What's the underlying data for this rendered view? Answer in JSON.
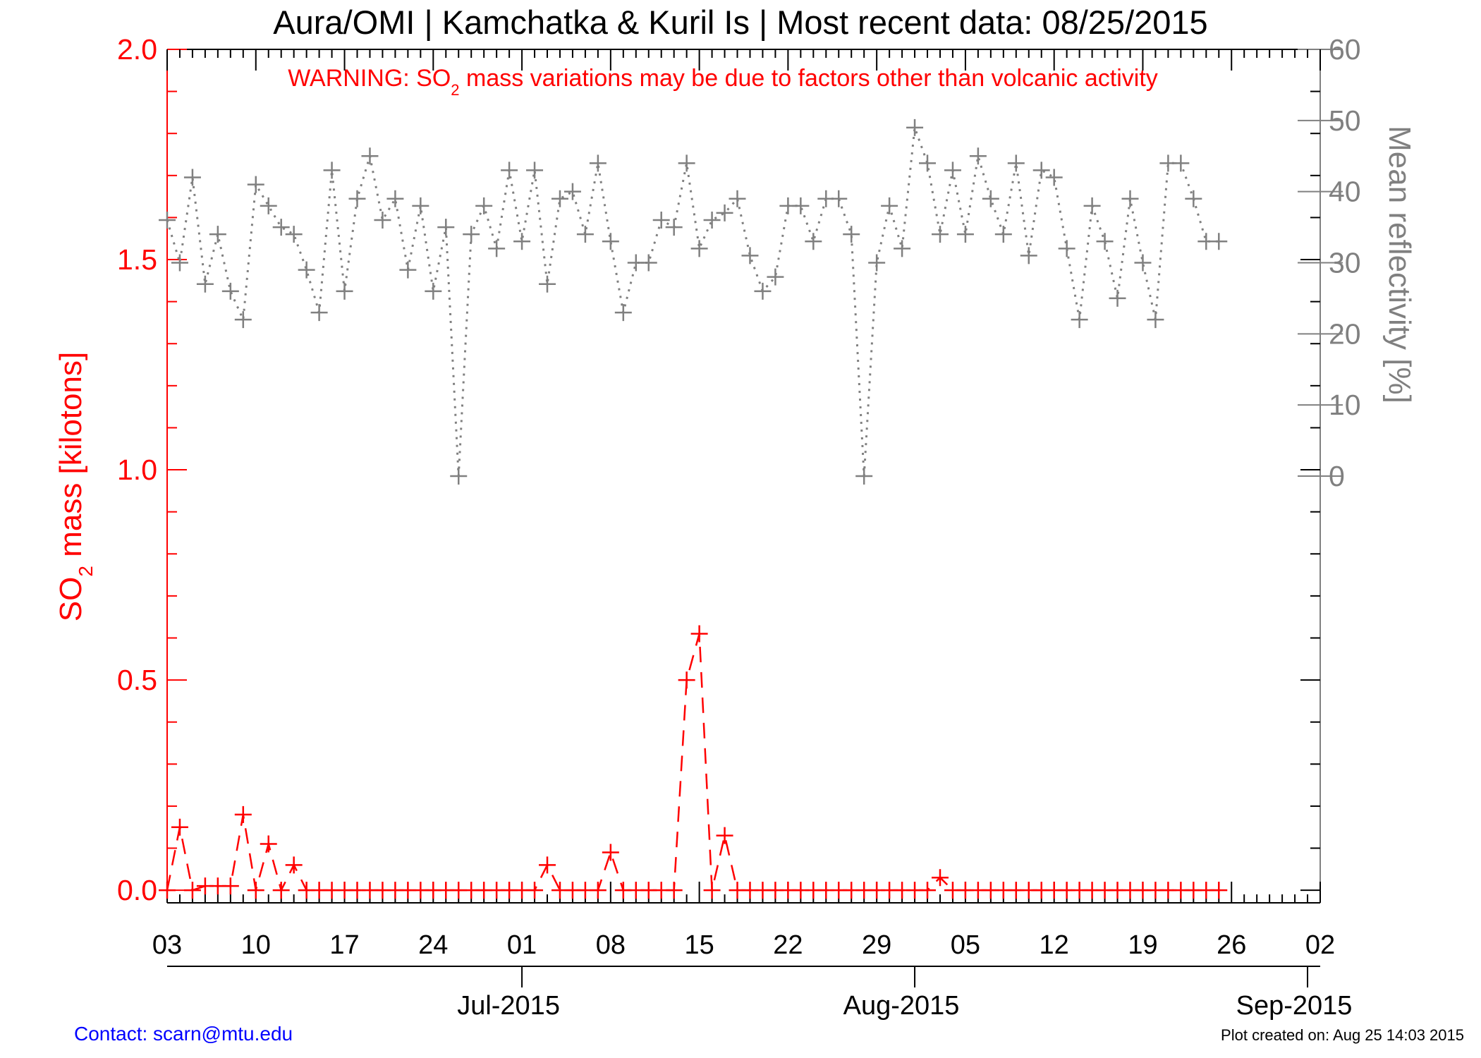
{
  "title": "Aura/OMI | Kamchatka & Kuril Is | Most recent data: 08/25/2015",
  "warning": {
    "prefix": "WARNING: SO",
    "subscript": "2",
    "suffix": " mass variations may be due to factors other than volcanic activity"
  },
  "contact": "Contact: scarn@mtu.edu",
  "plot_created": "Plot created on: Aug 25 14:03 2015",
  "colors": {
    "so2": "#ff0000",
    "reflectivity": "#808080",
    "axis": "#000000",
    "contact": "#0000ff"
  },
  "chart_data": {
    "type": "line",
    "x_start_date": "2015-06-03",
    "x_end_date": "2015-09-02",
    "x_range_days": [
      0,
      91
    ],
    "x_tick_days": [
      0,
      7,
      14,
      21,
      28,
      35,
      42,
      49,
      56,
      63,
      70,
      77,
      84,
      91
    ],
    "x_tick_labels": [
      "03",
      "10",
      "17",
      "24",
      "01",
      "08",
      "15",
      "22",
      "29",
      "05",
      "12",
      "19",
      "26",
      "02"
    ],
    "months": [
      {
        "label": "Jul-2015",
        "day": 28
      },
      {
        "label": "Aug-2015",
        "day": 59
      },
      {
        "label": "Sep-2015",
        "day": 90
      }
    ],
    "y_left": {
      "label_prefix": "SO",
      "label_subscript": "2",
      "label_suffix": " mass [kilotons]",
      "range": [
        -0.03,
        2.0
      ],
      "ticks": [
        0.0,
        0.5,
        1.0,
        1.5,
        2.0
      ],
      "tick_labels": [
        "0.0",
        "0.5",
        "1.0",
        "1.5",
        "2.0"
      ]
    },
    "y_right": {
      "label": "Mean reflectivity [%]",
      "range": [
        -60,
        60
      ],
      "ticks": [
        0,
        10,
        20,
        30,
        40,
        50,
        60
      ],
      "tick_labels": [
        "0",
        "10",
        "20",
        "30",
        "40",
        "50",
        "60"
      ]
    },
    "series": [
      {
        "name": "SO2 mass",
        "axis": "left",
        "line_style": "dashed",
        "marker": "+",
        "x": [
          0,
          1,
          2,
          3,
          4,
          5,
          6,
          7,
          8,
          9,
          10,
          11,
          12,
          13,
          14,
          15,
          16,
          17,
          18,
          19,
          20,
          21,
          22,
          23,
          24,
          25,
          26,
          27,
          28,
          29,
          30,
          31,
          32,
          33,
          34,
          35,
          36,
          37,
          38,
          39,
          40,
          41,
          42,
          43,
          44,
          45,
          46,
          47,
          48,
          49,
          50,
          51,
          52,
          53,
          54,
          55,
          56,
          57,
          58,
          59,
          60,
          61,
          62,
          63,
          64,
          65,
          66,
          67,
          68,
          69,
          70,
          71,
          72,
          73,
          74,
          75,
          76,
          77,
          78,
          79,
          80,
          81,
          82,
          83
        ],
        "y": [
          0.0,
          0.15,
          0.0,
          0.01,
          0.01,
          0.01,
          0.18,
          0.0,
          0.11,
          0.0,
          0.06,
          0.0,
          0.0,
          0.0,
          0.0,
          0.0,
          0.0,
          0.0,
          0.0,
          0.0,
          0.0,
          0.0,
          0.0,
          0.0,
          0.0,
          0.0,
          0.0,
          0.0,
          0.0,
          0.0,
          0.06,
          0.0,
          0.0,
          0.0,
          0.0,
          0.09,
          0.0,
          0.0,
          0.0,
          0.0,
          0.0,
          0.5,
          0.61,
          0.0,
          0.13,
          0.0,
          0.0,
          0.0,
          0.0,
          0.0,
          0.0,
          0.0,
          0.0,
          0.0,
          0.0,
          0.0,
          0.0,
          0.0,
          0.0,
          0.0,
          0.0,
          0.03,
          0.0,
          0.0,
          0.0,
          0.0,
          0.0,
          0.0,
          0.0,
          0.0,
          0.0,
          0.0,
          0.0,
          0.0,
          0.0,
          0.0,
          0.0,
          0.0,
          0.0,
          0.0,
          0.0,
          0.0,
          0.0,
          0.0
        ]
      },
      {
        "name": "Mean reflectivity",
        "axis": "right",
        "line_style": "dotted",
        "marker": "+",
        "x": [
          0,
          1,
          2,
          3,
          4,
          5,
          6,
          7,
          8,
          9,
          10,
          11,
          12,
          13,
          14,
          15,
          16,
          17,
          18,
          19,
          20,
          21,
          22,
          23,
          24,
          25,
          26,
          27,
          28,
          29,
          30,
          31,
          32,
          33,
          34,
          35,
          36,
          37,
          38,
          39,
          40,
          41,
          42,
          43,
          44,
          45,
          46,
          47,
          48,
          49,
          50,
          51,
          52,
          53,
          54,
          55,
          56,
          57,
          58,
          59,
          60,
          61,
          62,
          63,
          64,
          65,
          66,
          67,
          68,
          69,
          70,
          71,
          72,
          73,
          74,
          75,
          76,
          77,
          78,
          79,
          80,
          81,
          82,
          83
        ],
        "y": [
          36,
          30,
          42,
          27,
          34,
          26,
          22,
          41,
          38,
          35,
          34,
          29,
          23,
          43,
          26,
          39,
          45,
          36,
          39,
          29,
          38,
          26,
          35,
          0,
          34,
          38,
          32,
          43,
          33,
          43,
          27,
          39,
          40,
          34,
          44,
          33,
          23,
          30,
          30,
          36,
          35,
          44,
          32,
          36,
          37,
          39,
          31,
          26,
          28,
          38,
          38,
          33,
          39,
          39,
          34,
          0,
          30,
          38,
          32,
          49,
          44,
          34,
          43,
          34,
          45,
          39,
          34,
          44,
          31,
          43,
          42,
          32,
          22,
          38,
          33,
          25,
          39,
          30,
          22,
          44,
          44,
          39,
          33,
          33
        ]
      }
    ]
  }
}
